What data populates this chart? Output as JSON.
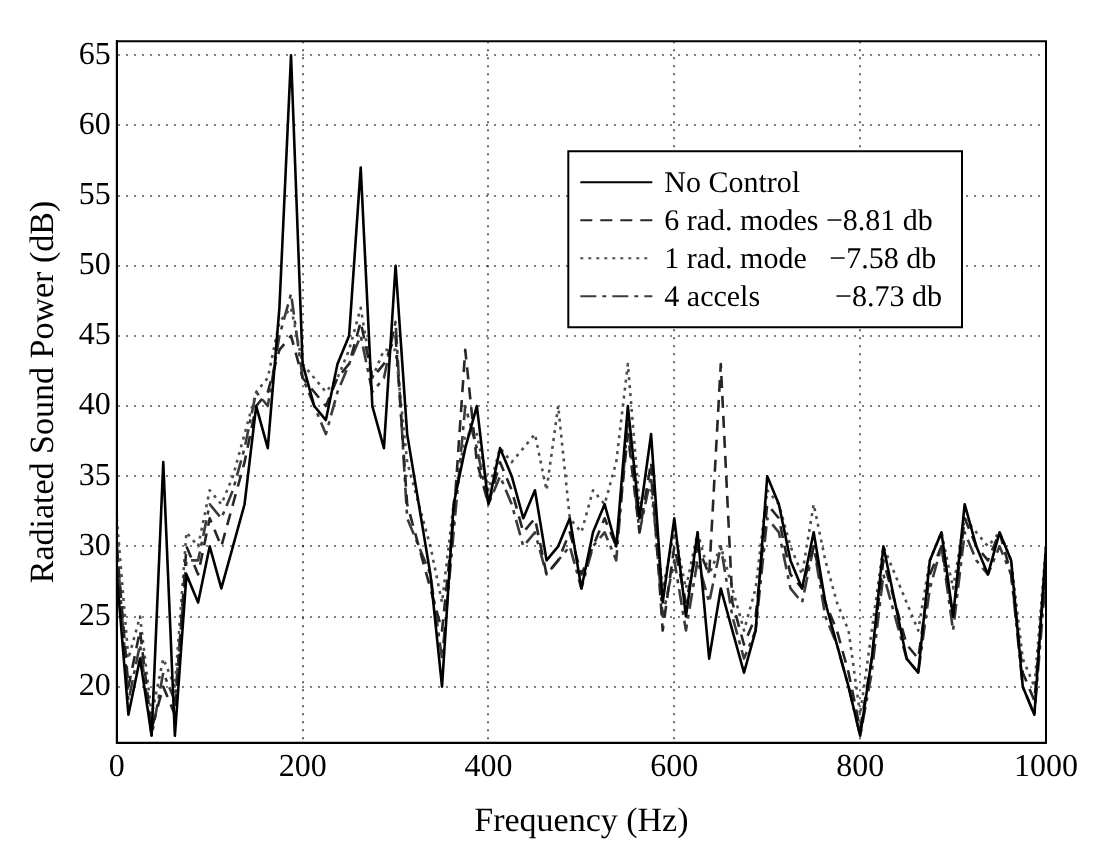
{
  "chart_data": {
    "type": "line",
    "xlabel": "Frequency (Hz)",
    "ylabel": "Radiated Sound Power (dB)",
    "x": [
      0,
      12.5,
      25,
      37.5,
      50,
      62.5,
      75,
      87.5,
      100,
      112.5,
      125,
      137.5,
      150,
      162.5,
      175,
      187.5,
      200,
      212.5,
      225,
      237.5,
      250,
      262.5,
      275,
      287.5,
      300,
      312.5,
      325,
      337.5,
      350,
      362.5,
      375,
      387.5,
      400,
      412.5,
      425,
      437.5,
      450,
      462.5,
      475,
      487.5,
      500,
      512.5,
      525,
      537.5,
      550,
      562.5,
      575,
      587.5,
      600,
      612.5,
      625,
      637.5,
      650,
      662.5,
      675,
      687.5,
      700,
      712.5,
      725,
      737.5,
      750,
      762.5,
      775,
      787.5,
      800,
      812.5,
      825,
      837.5,
      850,
      862.5,
      875,
      887.5,
      900,
      912.5,
      925,
      937.5,
      950,
      962.5,
      975,
      987.5,
      1000
    ],
    "xlim": [
      0,
      1000
    ],
    "xticks": [
      0,
      200,
      400,
      600,
      800,
      1000
    ],
    "ylim": [
      16,
      66
    ],
    "yticks": [
      20,
      25,
      30,
      35,
      40,
      45,
      50,
      55,
      60,
      65
    ],
    "grid": true,
    "legend": "top right",
    "marker": "none",
    "series": [
      {
        "name": "No Control",
        "color": "#000000",
        "line_style": "solid",
        "values": [
          28,
          18,
          22,
          16.5,
          36,
          16.5,
          28,
          26,
          30,
          27,
          30,
          33,
          40,
          37,
          47,
          65,
          43,
          40,
          39,
          43,
          45,
          57,
          40,
          37,
          50,
          38,
          33,
          28,
          20,
          33,
          37,
          40,
          33,
          37,
          35,
          32,
          34,
          29,
          30,
          32,
          27,
          31,
          33,
          30,
          40,
          32,
          38,
          26,
          32,
          25,
          31,
          22,
          27,
          24,
          21,
          24,
          35,
          33,
          29,
          27,
          31,
          26,
          23,
          20,
          16.5,
          22,
          30,
          26,
          22,
          21,
          29,
          31,
          25,
          33,
          30,
          28,
          31,
          29,
          20,
          18,
          30
        ]
      },
      {
        "name": "6 rad. modes −8.81 db",
        "color": "#262626",
        "line_style": "dashed",
        "values": [
          30,
          20,
          24,
          17,
          20,
          18,
          30,
          28,
          32,
          30,
          33,
          36,
          40,
          41,
          44,
          45,
          42,
          41,
          40,
          42,
          43,
          46,
          42,
          43,
          45,
          33,
          30,
          27,
          24,
          32,
          44,
          36,
          33,
          36,
          34,
          31,
          32,
          28,
          29,
          31,
          28,
          30,
          32,
          30,
          38,
          31,
          36,
          24,
          30,
          26,
          30,
          28,
          43,
          26,
          23,
          25,
          33,
          32,
          28,
          27,
          30,
          26,
          24,
          21,
          17,
          22,
          29,
          26,
          23,
          22,
          28,
          30,
          25,
          32,
          30,
          29,
          31,
          28,
          21,
          19,
          29
        ]
      },
      {
        "name": "1 rad. mode   −7.58 db",
        "color": "#4d4d4d",
        "line_style": "dotted",
        "values": [
          32,
          22,
          25,
          18,
          22,
          20,
          31,
          30,
          34,
          33,
          35,
          38,
          41,
          42,
          46,
          47,
          43,
          42,
          41,
          42,
          44,
          47,
          42,
          44,
          44,
          36,
          33,
          30,
          26,
          33,
          38,
          38,
          34,
          37,
          36,
          37,
          38,
          34,
          40,
          32,
          31,
          34,
          33,
          36,
          43,
          33,
          34,
          27,
          31,
          27,
          31,
          28,
          30,
          27,
          24,
          27,
          34,
          33,
          30,
          28,
          33,
          29,
          26,
          24,
          18,
          24,
          30,
          28,
          26,
          24,
          29,
          31,
          27,
          32,
          31,
          30,
          31,
          29,
          22,
          20,
          30
        ]
      },
      {
        "name": "4 accels          −8.73 db",
        "color": "#3a3a3a",
        "line_style": "dashdot",
        "values": [
          30,
          19,
          23,
          16.5,
          21,
          19,
          29,
          29,
          33,
          32,
          34,
          37,
          41,
          40,
          45,
          48,
          42,
          40,
          38,
          41,
          43,
          45,
          41,
          42,
          46,
          32,
          30,
          28,
          22,
          31,
          40,
          37,
          33,
          35,
          33,
          30,
          31,
          28,
          29,
          30,
          27,
          30,
          31,
          29,
          39,
          31,
          35,
          25,
          29,
          24,
          29,
          26,
          30,
          25,
          22,
          24,
          32,
          31,
          27,
          26,
          30,
          25,
          23,
          20,
          16.5,
          21,
          28,
          25,
          22,
          21,
          27,
          30,
          24,
          31,
          29,
          28,
          30,
          28,
          20,
          18,
          28
        ]
      }
    ]
  }
}
